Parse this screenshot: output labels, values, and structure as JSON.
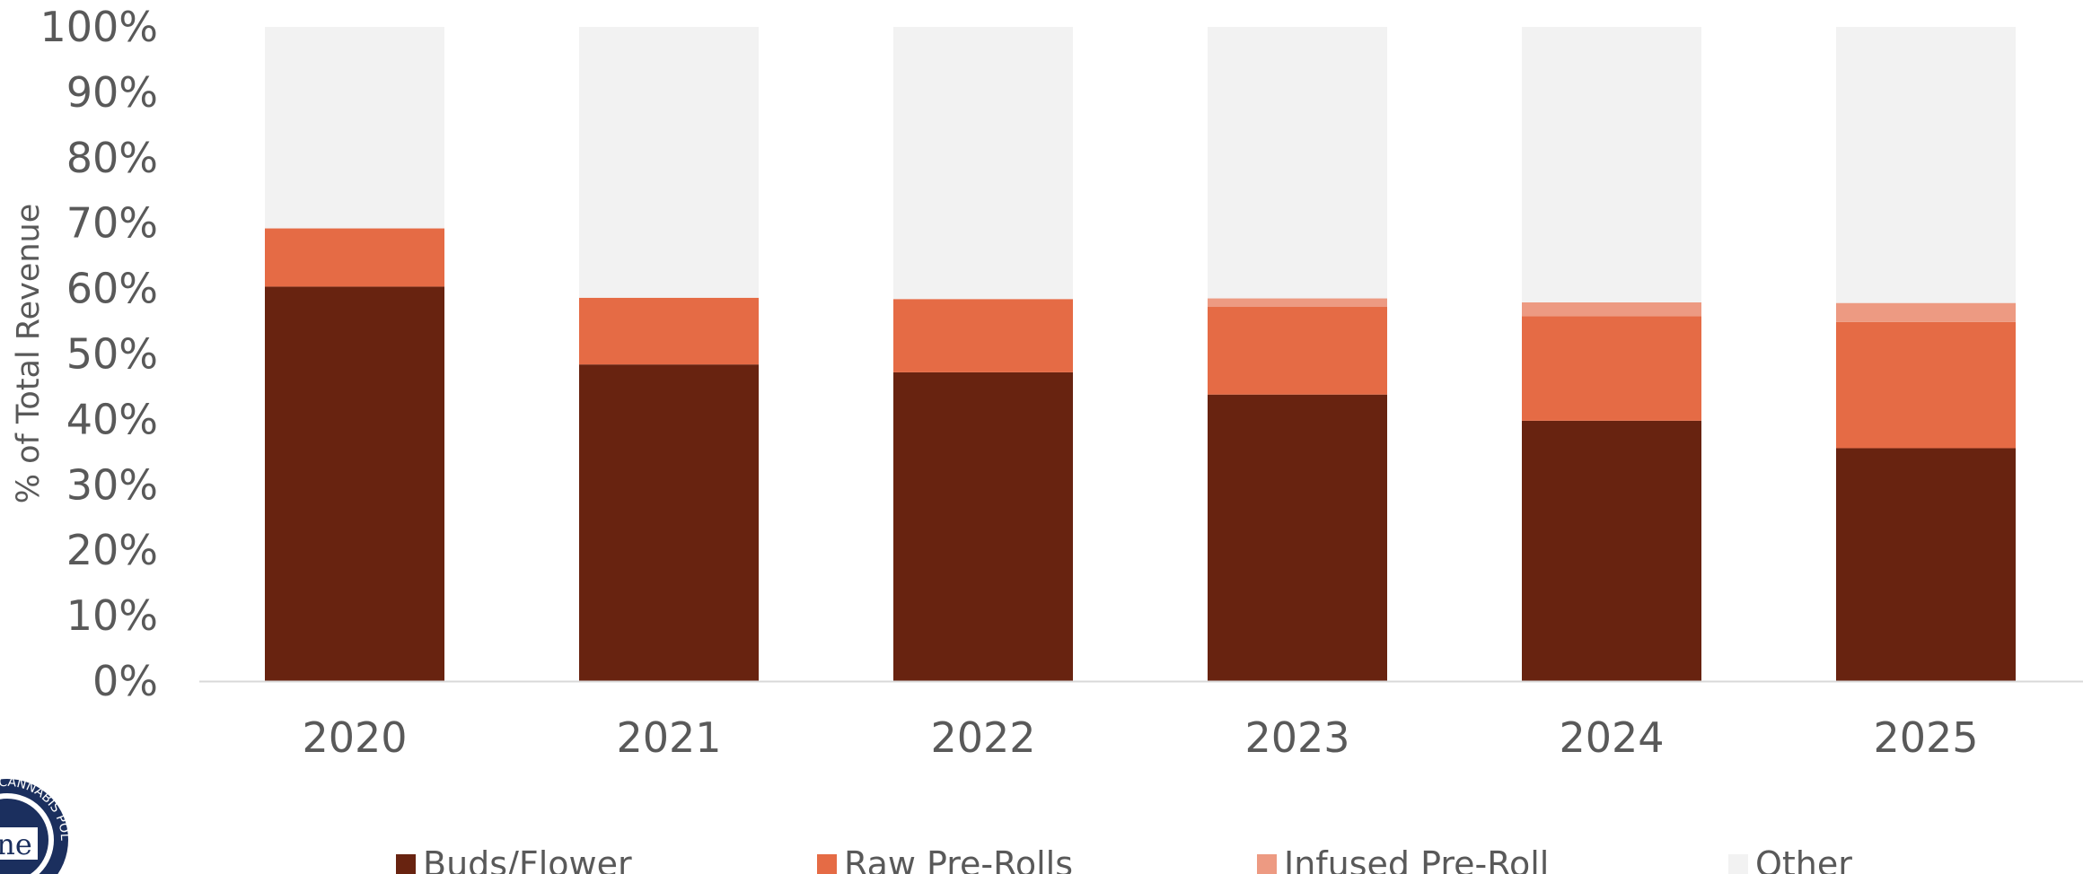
{
  "chart_data": {
    "type": "bar",
    "stacked": true,
    "percent_stacked": true,
    "categories": [
      "2020",
      "2021",
      "2022",
      "2023",
      "2024",
      "2025"
    ],
    "series": [
      {
        "name": "Buds/Flower",
        "color": "#682310",
        "values": [
          60.3,
          48.4,
          47.2,
          43.8,
          39.8,
          35.6
        ]
      },
      {
        "name": "Raw Pre-Rolls",
        "color": "#E56B45",
        "values": [
          8.9,
          10.2,
          11.2,
          13.4,
          16.0,
          19.3
        ]
      },
      {
        "name": "Infused Pre-Roll",
        "color": "#ED9A82",
        "values": [
          0,
          0,
          0,
          1.3,
          2.1,
          2.9
        ]
      },
      {
        "name": "Other",
        "color": "#F2F2F2",
        "values": [
          30.8,
          41.4,
          41.6,
          41.5,
          42.1,
          42.2
        ]
      }
    ],
    "ylabel": "% of Total Revenue",
    "xlabel": "",
    "ylim": [
      0,
      100
    ],
    "yticks": [
      "0%",
      "10%",
      "20%",
      "30%",
      "40%",
      "50%",
      "60%",
      "70%",
      "80%",
      "90%",
      "100%"
    ],
    "grid": false,
    "legend_position": "bottom"
  },
  "logo": {
    "text": "ne",
    "ring_text": "CANNABIS POLICY",
    "color": "#1B2F5E"
  }
}
